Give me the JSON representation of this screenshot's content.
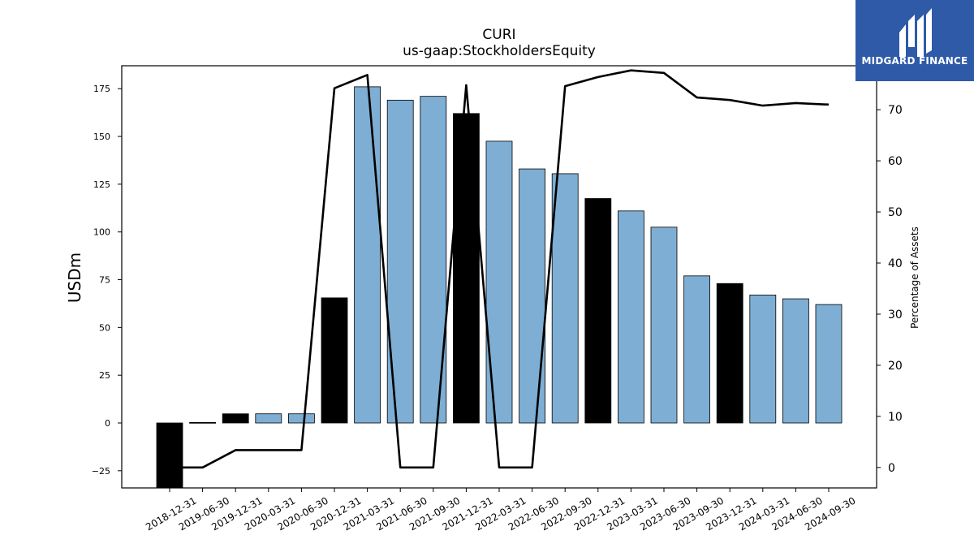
{
  "chart_data": {
    "type": "bar",
    "title": "CURI",
    "subtitle": "us-gaap:StockholdersEquity",
    "ylabel": "USDm",
    "y2label": "Percentage of Assets",
    "categories": [
      "2018-12-31",
      "2019-06-30",
      "2019-12-31",
      "2020-03-31",
      "2020-06-30",
      "2020-12-31",
      "2021-03-31",
      "2021-06-30",
      "2021-09-30",
      "2021-12-31",
      "2022-03-31",
      "2022-06-30",
      "2022-09-30",
      "2022-12-31",
      "2023-03-31",
      "2023-06-30",
      "2023-09-30",
      "2023-12-31",
      "2024-03-31",
      "2024-06-30",
      "2024-09-30"
    ],
    "values": [
      -36,
      0.3,
      4.8,
      4.8,
      4.8,
      65.5,
      176,
      169,
      171,
      162,
      147.5,
      133,
      130.5,
      117.5,
      111,
      102.5,
      77,
      73,
      67,
      65,
      62
    ],
    "bar_colors": [
      "#000000",
      "#000000",
      "#000000",
      "#7eaed3",
      "#7eaed3",
      "#000000",
      "#7eaed3",
      "#7eaed3",
      "#7eaed3",
      "#000000",
      "#7eaed3",
      "#7eaed3",
      "#7eaed3",
      "#000000",
      "#7eaed3",
      "#7eaed3",
      "#7eaed3",
      "#000000",
      "#7eaed3",
      "#7eaed3",
      "#7eaed3"
    ],
    "line_series": {
      "axis": "right",
      "values": [
        0,
        0,
        3.4,
        3.4,
        3.4,
        74.2,
        76.8,
        0,
        0,
        74.8,
        0,
        0,
        74.6,
        76.4,
        77.7,
        77.2,
        72.4,
        71.9,
        70.8,
        71.3,
        71.0
      ]
    },
    "ylim": [
      -34,
      187
    ],
    "y2lim": [
      -4,
      78.6
    ],
    "yticks": [
      -25,
      0,
      25,
      50,
      75,
      100,
      125,
      150,
      175
    ],
    "y2ticks": [
      0,
      10,
      20,
      30,
      40,
      50,
      60,
      70
    ],
    "grid": false,
    "accent_color": "#7eaed3"
  },
  "logo": {
    "text": "MIDGARD FINANCE",
    "background": "#2f5aa8"
  }
}
